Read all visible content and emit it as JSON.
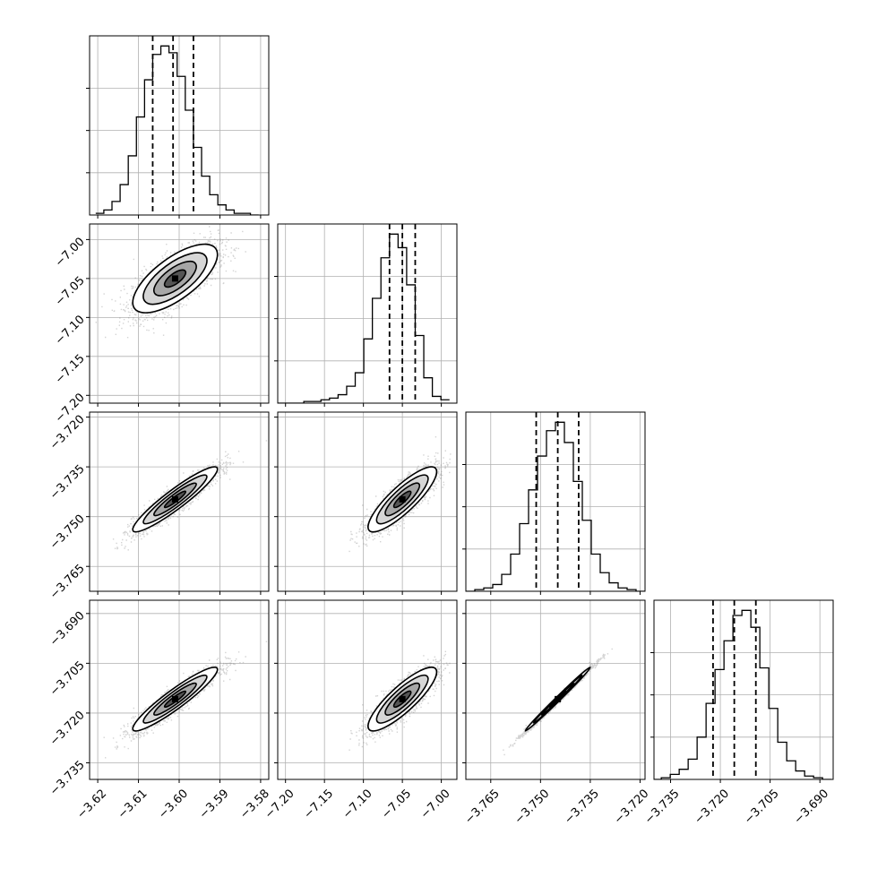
{
  "chart_data": {
    "type": "corner",
    "grid": true,
    "n_params": 4,
    "params": [
      {
        "range": [
          -3.622,
          -3.578
        ],
        "ticks": [
          -3.62,
          -3.61,
          -3.6,
          -3.59,
          -3.58
        ],
        "tick_labels": [
          "−3.62",
          "−3.61",
          "−3.60",
          "−3.59",
          "−3.58"
        ],
        "quantiles": [
          -3.6065,
          -3.6015,
          -3.5965
        ],
        "hist_bins": [
          -3.6205,
          -3.6185,
          -3.6165,
          -3.6145,
          -3.6125,
          -3.6105,
          -3.6085,
          -3.6065,
          -3.6045,
          -3.6025,
          -3.6005,
          -3.5985,
          -3.5965,
          -3.5945,
          -3.5925,
          -3.5905,
          -3.5885,
          -3.5865,
          -3.5845,
          -3.5825,
          -3.5805
        ],
        "hist_counts": [
          1,
          3,
          8,
          18,
          35,
          58,
          80,
          95,
          100,
          96,
          82,
          62,
          40,
          23,
          12,
          6,
          3,
          1,
          1,
          0
        ],
        "center": -3.601,
        "sigma": 0.0052
      },
      {
        "range": [
          -7.21,
          -6.98
        ],
        "ticks": [
          -7.2,
          -7.15,
          -7.1,
          -7.05,
          -7.0
        ],
        "tick_labels": [
          "−7.20",
          "−7.15",
          "−7.10",
          "−7.05",
          "−7.00"
        ],
        "quantiles": [
          -7.0665,
          -7.05,
          -7.0335
        ],
        "hist_bins": [
          -7.2095,
          -7.1985,
          -7.1875,
          -7.1765,
          -7.1655,
          -7.1545,
          -7.1435,
          -7.1325,
          -7.1215,
          -7.1105,
          -7.0995,
          -7.0885,
          -7.0775,
          -7.0665,
          -7.0555,
          -7.0445,
          -7.0335,
          -7.0225,
          -7.0115,
          -7.0005,
          -6.9895
        ],
        "hist_counts": [
          0,
          0,
          0,
          1,
          1,
          2,
          3,
          5,
          10,
          18,
          38,
          62,
          86,
          100,
          92,
          70,
          40,
          15,
          4,
          2
        ],
        "center": -7.05,
        "sigma": 0.022
      },
      {
        "range": [
          -3.7725,
          -3.7185
        ],
        "ticks": [
          -3.72,
          -3.735,
          -3.75,
          -3.765
        ],
        "tick_labels": [
          "−3.720",
          "−3.735",
          "−3.750",
          "−3.765"
        ],
        "quantiles": [
          -3.7513,
          -3.7448,
          -3.7385
        ],
        "hist_bins": [
          -3.7725,
          -3.7698,
          -3.7671,
          -3.7644,
          -3.7617,
          -3.759,
          -3.7563,
          -3.7536,
          -3.7509,
          -3.7482,
          -3.7455,
          -3.7428,
          -3.7401,
          -3.7374,
          -3.7347,
          -3.732,
          -3.7293,
          -3.7266,
          -3.7239,
          -3.7212,
          -3.7185
        ],
        "hist_counts": [
          0,
          1,
          2,
          4,
          10,
          22,
          40,
          60,
          80,
          95,
          100,
          88,
          65,
          42,
          22,
          11,
          5,
          2,
          1,
          0
        ],
        "center": -3.7448,
        "sigma": 0.0049
      },
      {
        "range": [
          -3.74,
          -3.686
        ],
        "ticks": [
          -3.69,
          -3.705,
          -3.72,
          -3.735
        ],
        "tick_labels": [
          "−3.690",
          "−3.705",
          "−3.720",
          "−3.735"
        ],
        "quantiles": [
          -3.7222,
          -3.7158,
          -3.7093
        ],
        "hist_bins": [
          -3.7405,
          -3.7378,
          -3.7351,
          -3.7324,
          -3.7297,
          -3.727,
          -3.7243,
          -3.7216,
          -3.7189,
          -3.7162,
          -3.7135,
          -3.7108,
          -3.7081,
          -3.7054,
          -3.7027,
          -3.7,
          -3.6973,
          -3.6946,
          -3.6919,
          -3.6892,
          -3.6865
        ],
        "hist_counts": [
          0,
          1,
          3,
          6,
          12,
          25,
          45,
          65,
          82,
          97,
          100,
          90,
          66,
          42,
          22,
          11,
          5,
          2,
          1,
          0
        ],
        "center": -3.7158,
        "sigma": 0.0048
      }
    ],
    "correlations": [
      [
        1.0,
        0.7,
        0.93,
        0.93
      ],
      [
        0.7,
        1.0,
        0.85,
        0.85
      ],
      [
        0.93,
        0.85,
        1.0,
        0.995
      ],
      [
        0.93,
        0.85,
        0.995,
        1.0
      ]
    ],
    "colors": {
      "line": "#000000",
      "grid": "#b0b0b0",
      "points": "#808080",
      "fill_levels": [
        "#ffffff",
        "#d6d6d6",
        "#a6a6a6",
        "#555555",
        "#000000"
      ]
    }
  }
}
